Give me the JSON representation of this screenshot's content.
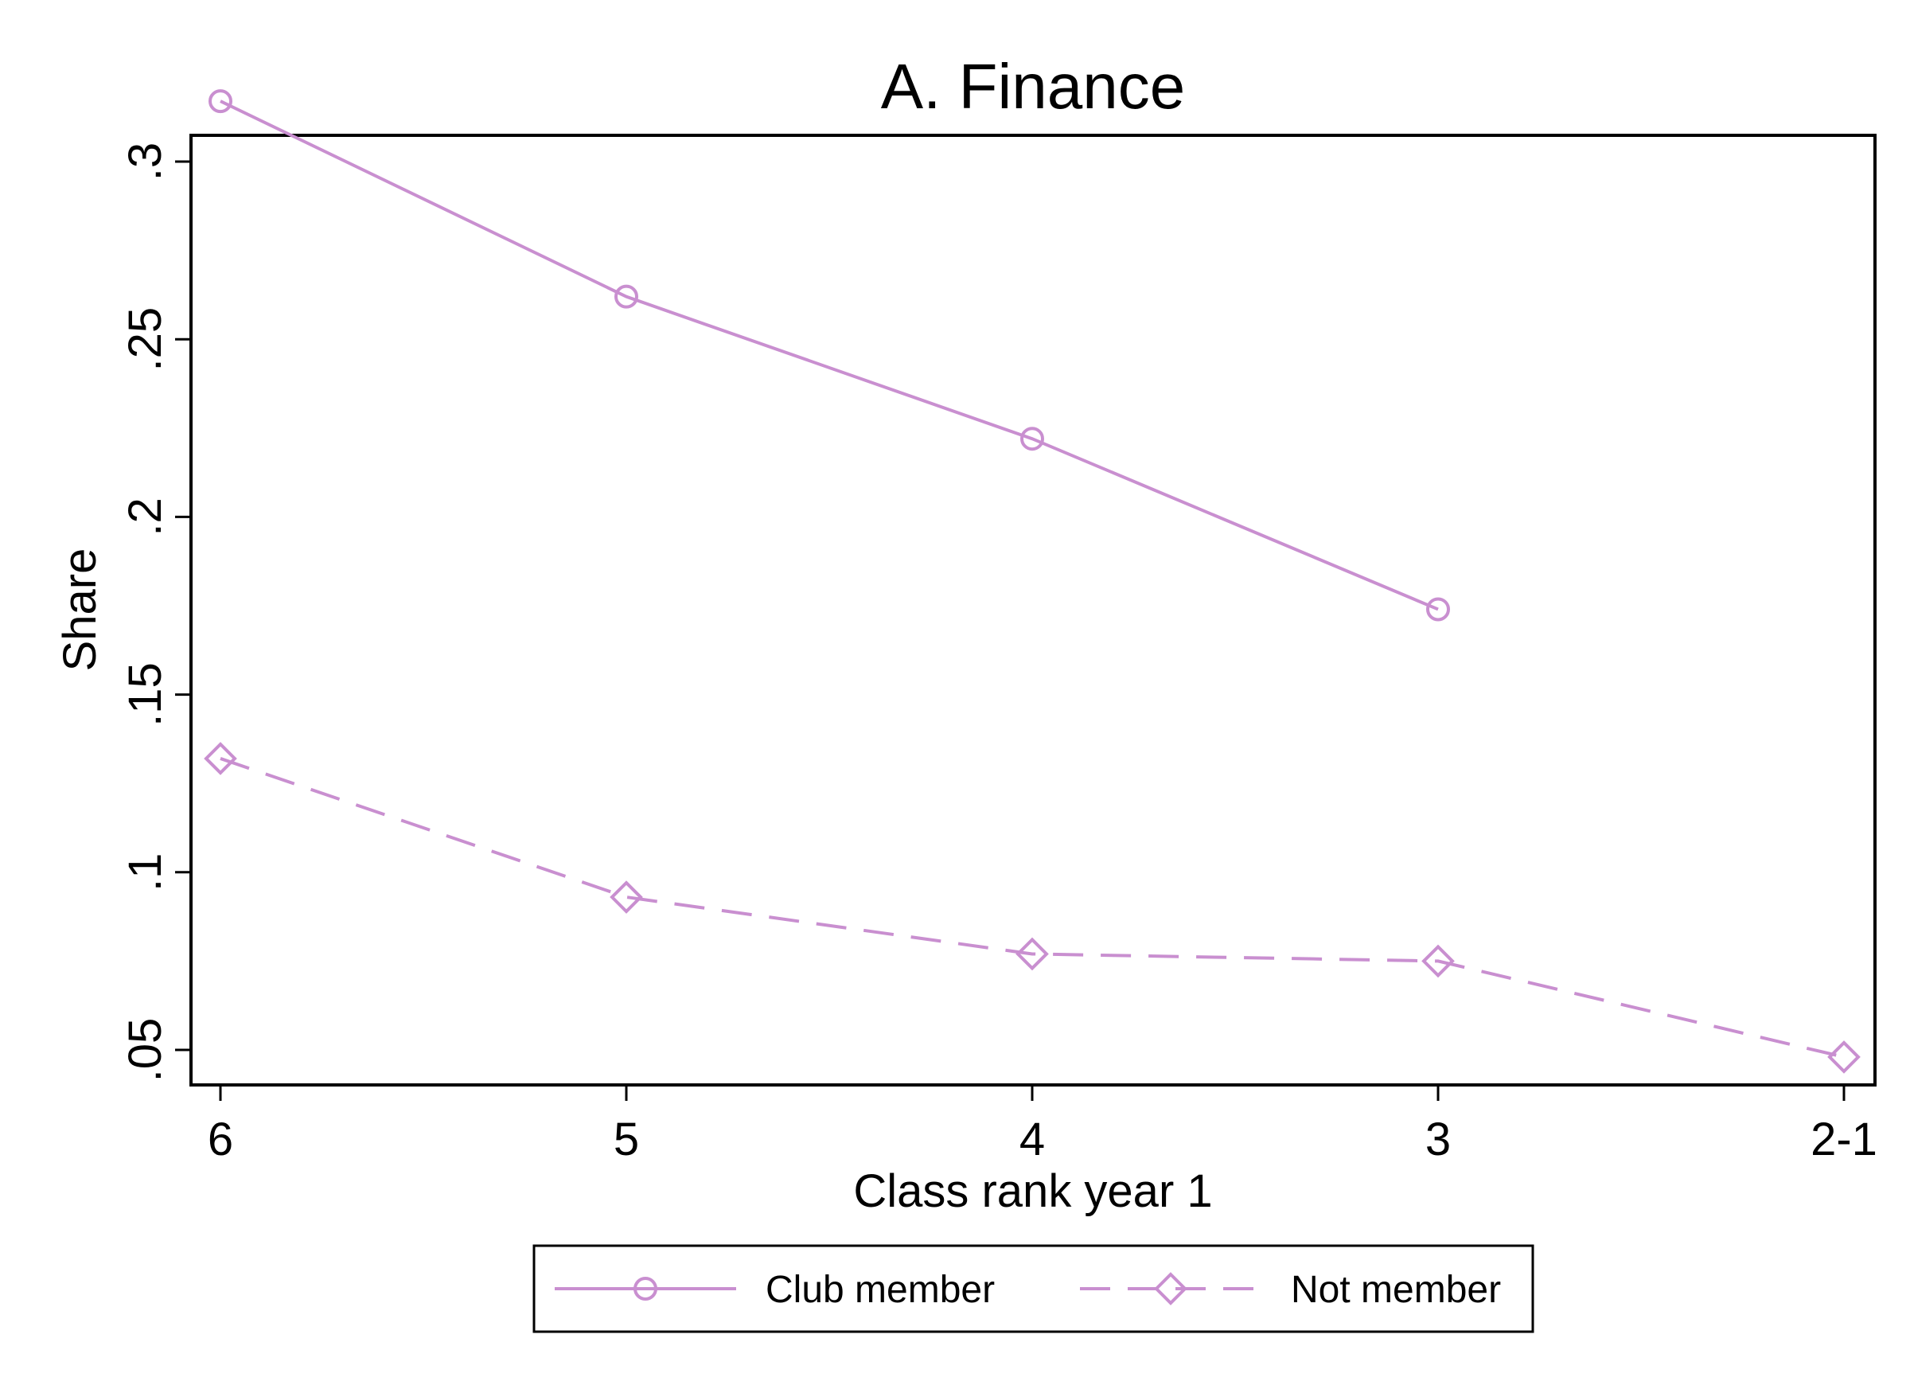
{
  "chart_data": {
    "type": "line",
    "title": "A. Finance",
    "xlabel": "Class rank year 1",
    "ylabel": "Share",
    "categories": [
      "6",
      "5",
      "4",
      "3",
      "2-1"
    ],
    "yticks": [
      0.05,
      0.1,
      0.15,
      0.2,
      0.25,
      0.3
    ],
    "ytick_labels": [
      ".05",
      ".1",
      ".15",
      ".2",
      ".25",
      ".3"
    ],
    "ylim": [
      0.039,
      0.326
    ],
    "grid": false,
    "legend_position": "bottom",
    "color": "#c98fd0",
    "series": [
      {
        "name": "Club member",
        "marker": "circle",
        "line": "solid",
        "values": [
          0.317,
          0.262,
          0.222,
          0.174,
          null
        ]
      },
      {
        "name": "Not member",
        "marker": "diamond",
        "line": "dashed",
        "values": [
          0.132,
          0.093,
          0.077,
          0.075,
          0.048
        ]
      }
    ]
  }
}
